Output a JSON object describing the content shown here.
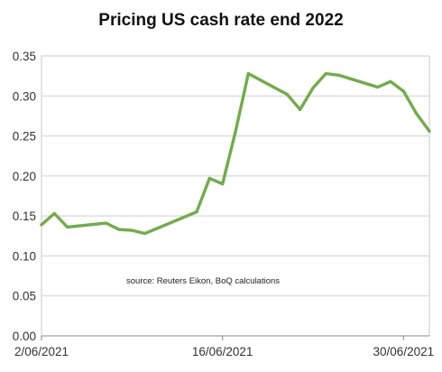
{
  "chart_data": {
    "type": "line",
    "title": "Pricing US cash rate end 2022",
    "xlabel": "",
    "ylabel": "",
    "ylim": [
      0,
      0.35
    ],
    "yticks": [
      "0.00",
      "0.05",
      "0.10",
      "0.15",
      "0.20",
      "0.25",
      "0.30",
      "0.35"
    ],
    "xlim": [
      "2021-06-02",
      "2021-07-02"
    ],
    "xticks": [
      {
        "date": "2021-06-02",
        "label": "2/06/2021"
      },
      {
        "date": "2021-06-16",
        "label": "16/06/2021"
      },
      {
        "date": "2021-06-30",
        "label": "30/06/2021"
      }
    ],
    "grid": "horizontal",
    "annotation": "source:  Reuters Eikon, BoQ calculations",
    "line_color": "#70ad47",
    "series": [
      {
        "name": "",
        "points": [
          {
            "x": "2021-06-02",
            "y": 0.139
          },
          {
            "x": "2021-06-03",
            "y": 0.153
          },
          {
            "x": "2021-06-04",
            "y": 0.136
          },
          {
            "x": "2021-06-07",
            "y": 0.141
          },
          {
            "x": "2021-06-08",
            "y": 0.133
          },
          {
            "x": "2021-06-09",
            "y": 0.132
          },
          {
            "x": "2021-06-10",
            "y": 0.128
          },
          {
            "x": "2021-06-14",
            "y": 0.155
          },
          {
            "x": "2021-06-15",
            "y": 0.197
          },
          {
            "x": "2021-06-16",
            "y": 0.19
          },
          {
            "x": "2021-06-17",
            "y": 0.255
          },
          {
            "x": "2021-06-18",
            "y": 0.328
          },
          {
            "x": "2021-06-21",
            "y": 0.302
          },
          {
            "x": "2021-06-22",
            "y": 0.283
          },
          {
            "x": "2021-06-23",
            "y": 0.31
          },
          {
            "x": "2021-06-24",
            "y": 0.328
          },
          {
            "x": "2021-06-25",
            "y": 0.326
          },
          {
            "x": "2021-06-28",
            "y": 0.311
          },
          {
            "x": "2021-06-29",
            "y": 0.318
          },
          {
            "x": "2021-06-30",
            "y": 0.306
          },
          {
            "x": "2021-07-01",
            "y": 0.278
          },
          {
            "x": "2021-07-02",
            "y": 0.256
          }
        ]
      }
    ]
  }
}
